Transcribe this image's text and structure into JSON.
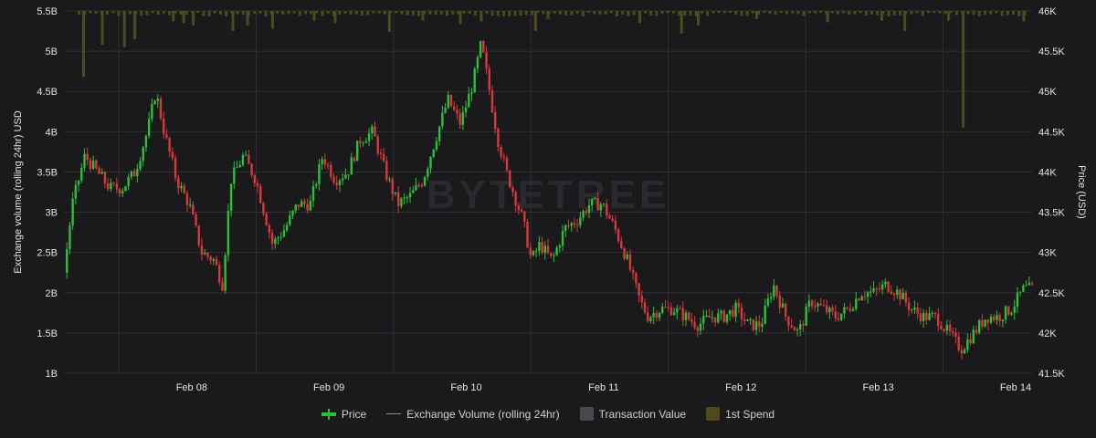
{
  "chart_data": {
    "type": "candlestick+bar",
    "watermark": "BYTETREE",
    "left_axis": {
      "title": "Exchange volume (rolling 24hr) USD",
      "ticks": [
        "1B",
        "1.5B",
        "2B",
        "2.5B",
        "3B",
        "3.5B",
        "4B",
        "4.5B",
        "5B",
        "5.5B"
      ],
      "range": [
        1,
        5.5
      ]
    },
    "right_axis": {
      "title": "Price (USD)",
      "ticks": [
        "41.5K",
        "42K",
        "42.5K",
        "43K",
        "43.5K",
        "44K",
        "44.5K",
        "45K",
        "45.5K",
        "46K"
      ],
      "range": [
        41500,
        46000
      ]
    },
    "x_axis": {
      "tick_labels": [
        "Feb 08",
        "Feb 09",
        "Feb 10",
        "Feb 11",
        "Feb 12",
        "Feb 13",
        "Feb 14"
      ]
    },
    "price_path": [
      [
        0.0,
        42750
      ],
      [
        0.2,
        43600
      ],
      [
        0.5,
        44200
      ],
      [
        0.8,
        44000
      ],
      [
        1.1,
        43800
      ],
      [
        1.4,
        43800
      ],
      [
        1.7,
        44000
      ],
      [
        2.0,
        44500
      ],
      [
        2.2,
        45000
      ],
      [
        2.4,
        44500
      ],
      [
        2.7,
        43900
      ],
      [
        3.0,
        43600
      ],
      [
        3.3,
        43000
      ],
      [
        3.6,
        42900
      ],
      [
        3.8,
        42600
      ],
      [
        4.0,
        43900
      ],
      [
        4.3,
        44200
      ],
      [
        4.6,
        43900
      ],
      [
        4.8,
        43500
      ],
      [
        5.0,
        43100
      ],
      [
        5.3,
        43300
      ],
      [
        5.6,
        43600
      ],
      [
        5.9,
        43600
      ],
      [
        6.2,
        44200
      ],
      [
        6.5,
        43900
      ],
      [
        6.8,
        44000
      ],
      [
        7.1,
        44400
      ],
      [
        7.4,
        44500
      ],
      [
        7.7,
        44000
      ],
      [
        8.0,
        43600
      ],
      [
        8.3,
        43700
      ],
      [
        8.6,
        43900
      ],
      [
        8.9,
        44400
      ],
      [
        9.2,
        44900
      ],
      [
        9.5,
        44600
      ],
      [
        9.8,
        45100
      ],
      [
        10.0,
        45600
      ],
      [
        10.2,
        45000
      ],
      [
        10.4,
        44400
      ],
      [
        10.6,
        44000
      ],
      [
        10.8,
        43700
      ],
      [
        11.0,
        43400
      ],
      [
        11.2,
        42900
      ],
      [
        11.4,
        43100
      ],
      [
        11.7,
        42900
      ],
      [
        12.0,
        43300
      ],
      [
        12.3,
        43400
      ],
      [
        12.6,
        43600
      ],
      [
        12.9,
        43600
      ],
      [
        13.2,
        43300
      ],
      [
        13.5,
        42900
      ],
      [
        13.8,
        42400
      ],
      [
        14.0,
        42200
      ],
      [
        14.3,
        42300
      ],
      [
        14.6,
        42300
      ],
      [
        14.9,
        42200
      ],
      [
        15.2,
        42100
      ],
      [
        15.5,
        42200
      ],
      [
        15.8,
        42200
      ],
      [
        16.1,
        42300
      ],
      [
        16.4,
        42100
      ],
      [
        16.7,
        42100
      ],
      [
        17.0,
        42600
      ],
      [
        17.3,
        42200
      ],
      [
        17.6,
        42000
      ],
      [
        17.9,
        42400
      ],
      [
        18.2,
        42300
      ],
      [
        18.5,
        42200
      ],
      [
        18.8,
        42300
      ],
      [
        19.1,
        42500
      ],
      [
        19.4,
        42500
      ],
      [
        19.7,
        42600
      ],
      [
        20.0,
        42500
      ],
      [
        20.3,
        42300
      ],
      [
        20.6,
        42200
      ],
      [
        20.9,
        42200
      ],
      [
        21.2,
        42000
      ],
      [
        21.5,
        41800
      ],
      [
        21.8,
        42000
      ],
      [
        22.1,
        42200
      ],
      [
        22.4,
        42200
      ],
      [
        22.7,
        42300
      ],
      [
        23.0,
        42550
      ],
      [
        23.2,
        42550
      ]
    ],
    "price_x_range": [
      0,
      23.2
    ],
    "volume_spikes": [
      [
        0.47,
        0.82
      ],
      [
        0.92,
        0.42
      ],
      [
        1.45,
        0.45
      ],
      [
        1.7,
        0.35
      ],
      [
        2.62,
        0.13
      ],
      [
        2.87,
        0.15
      ],
      [
        3.1,
        0.18
      ],
      [
        4.05,
        0.25
      ],
      [
        4.4,
        0.18
      ],
      [
        5.0,
        0.22
      ],
      [
        6.0,
        0.12
      ],
      [
        6.5,
        0.15
      ],
      [
        7.8,
        0.26
      ],
      [
        8.6,
        0.12
      ],
      [
        9.5,
        0.16
      ],
      [
        10.0,
        0.13
      ],
      [
        11.3,
        0.25
      ],
      [
        11.6,
        0.1
      ],
      [
        13.8,
        0.15
      ],
      [
        14.8,
        0.28
      ],
      [
        15.2,
        0.18
      ],
      [
        16.6,
        0.1
      ],
      [
        18.3,
        0.14
      ],
      [
        19.6,
        0.12
      ],
      [
        20.15,
        0.25
      ],
      [
        21.2,
        0.12
      ],
      [
        21.55,
        1.45
      ],
      [
        23.0,
        0.13
      ]
    ],
    "legend": [
      {
        "label": "Price",
        "color": "#2fbd3a",
        "kind": "candle"
      },
      {
        "label": "Exchange Volume (rolling 24hr)",
        "color": "#8c8c8c",
        "kind": "line"
      },
      {
        "label": "Transaction Value",
        "color": "#4a4a4e",
        "kind": "box"
      },
      {
        "label": "1st Spend",
        "color": "#4d4a20",
        "kind": "box"
      }
    ],
    "colors": {
      "up": "#2fbd3a",
      "down": "#d9383a",
      "volume_bar": "#4d4a20",
      "grid": "#2e2e33"
    }
  }
}
